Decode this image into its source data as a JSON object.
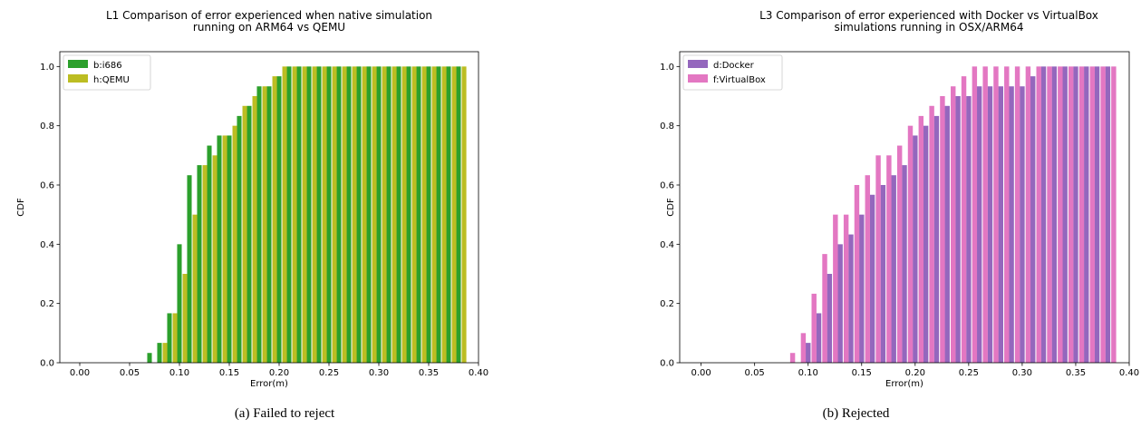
{
  "chart_data": [
    {
      "type": "bar",
      "title_lines": [
        "L1 Comparison of error experienced when native simulation",
        "running on ARM64 vs QEMU"
      ],
      "xlabel": "Error(m)",
      "ylabel": "CDF",
      "xlim": [
        -0.02,
        0.4
      ],
      "ylim": [
        0,
        1.05
      ],
      "xticks": [
        "0.00",
        "0.05",
        "0.10",
        "0.15",
        "0.20",
        "0.25",
        "0.30",
        "0.35",
        "0.40"
      ],
      "yticks": [
        "0.0",
        "0.2",
        "0.4",
        "0.6",
        "0.8",
        "1.0"
      ],
      "legend_position": "top-left",
      "series": [
        {
          "name": "b:i686",
          "color": "#2ca02c",
          "x": [
            0.07,
            0.08,
            0.09,
            0.1,
            0.11,
            0.12,
            0.13,
            0.14,
            0.15,
            0.16,
            0.17,
            0.18,
            0.19,
            0.2,
            0.21,
            0.22,
            0.23,
            0.24,
            0.25,
            0.26,
            0.27,
            0.28,
            0.29,
            0.3,
            0.31,
            0.32,
            0.33,
            0.34,
            0.35,
            0.36,
            0.37,
            0.38
          ],
          "values": [
            0.033,
            0.067,
            0.167,
            0.4,
            0.633,
            0.667,
            0.733,
            0.767,
            0.767,
            0.833,
            0.867,
            0.933,
            0.933,
            0.967,
            1.0,
            1.0,
            1.0,
            1.0,
            1.0,
            1.0,
            1.0,
            1.0,
            1.0,
            1.0,
            1.0,
            1.0,
            1.0,
            1.0,
            1.0,
            1.0,
            1.0,
            1.0
          ]
        },
        {
          "name": "h:QEMU",
          "color": "#bcbd22",
          "x": [
            0.0755,
            0.0855,
            0.0955,
            0.1055,
            0.1155,
            0.1255,
            0.1355,
            0.1455,
            0.1555,
            0.1655,
            0.1755,
            0.1855,
            0.1955,
            0.2055,
            0.2155,
            0.2255,
            0.2355,
            0.2455,
            0.2555,
            0.2655,
            0.2755,
            0.2855,
            0.2955,
            0.3055,
            0.3155,
            0.3255,
            0.3355,
            0.3455,
            0.3555,
            0.3655,
            0.3755,
            0.3855
          ],
          "values": [
            0.0,
            0.067,
            0.167,
            0.3,
            0.5,
            0.667,
            0.7,
            0.767,
            0.8,
            0.867,
            0.9,
            0.933,
            0.967,
            1.0,
            1.0,
            1.0,
            1.0,
            1.0,
            1.0,
            1.0,
            1.0,
            1.0,
            1.0,
            1.0,
            1.0,
            1.0,
            1.0,
            1.0,
            1.0,
            1.0,
            1.0,
            1.0
          ]
        }
      ]
    },
    {
      "type": "bar",
      "title_lines": [
        "L3 Comparison of error experienced with Docker vs VirtualBox",
        "simulations running in OSX/ARM64"
      ],
      "xlabel": "Error(m)",
      "ylabel": "CDF",
      "xlim": [
        -0.02,
        0.4
      ],
      "ylim": [
        0,
        1.05
      ],
      "xticks": [
        "0.00",
        "0.05",
        "0.10",
        "0.15",
        "0.20",
        "0.25",
        "0.30",
        "0.35",
        "0.40"
      ],
      "yticks": [
        "0.0",
        "0.2",
        "0.4",
        "0.6",
        "0.8",
        "1.0"
      ],
      "legend_position": "top-left",
      "series": [
        {
          "name": "d:Docker",
          "color": "#9467bd",
          "x": [
            0.09,
            0.1,
            0.11,
            0.12,
            0.13,
            0.14,
            0.15,
            0.16,
            0.17,
            0.18,
            0.19,
            0.2,
            0.21,
            0.22,
            0.23,
            0.24,
            0.25,
            0.26,
            0.27,
            0.28,
            0.29,
            0.3,
            0.31,
            0.32,
            0.33,
            0.34,
            0.35,
            0.36,
            0.37,
            0.38
          ],
          "values": [
            0.0,
            0.067,
            0.167,
            0.3,
            0.4,
            0.433,
            0.5,
            0.567,
            0.6,
            0.633,
            0.667,
            0.767,
            0.8,
            0.833,
            0.867,
            0.9,
            0.9,
            0.933,
            0.933,
            0.933,
            0.933,
            0.933,
            0.967,
            1.0,
            1.0,
            1.0,
            1.0,
            1.0,
            1.0,
            1.0
          ]
        },
        {
          "name": "f:VirtualBox",
          "color": "#e377c2",
          "x": [
            0.0855,
            0.0955,
            0.1055,
            0.1155,
            0.1255,
            0.1355,
            0.1455,
            0.1555,
            0.1655,
            0.1755,
            0.1855,
            0.1955,
            0.2055,
            0.2155,
            0.2255,
            0.2355,
            0.2455,
            0.2555,
            0.2655,
            0.2755,
            0.2855,
            0.2955,
            0.3055,
            0.3155,
            0.3255,
            0.3355,
            0.3455,
            0.3555,
            0.3655,
            0.3755,
            0.3855
          ],
          "values": [
            0.033,
            0.1,
            0.233,
            0.367,
            0.5,
            0.5,
            0.6,
            0.633,
            0.7,
            0.7,
            0.733,
            0.8,
            0.833,
            0.867,
            0.9,
            0.933,
            0.967,
            1.0,
            1.0,
            1.0,
            1.0,
            1.0,
            1.0,
            1.0,
            1.0,
            1.0,
            1.0,
            1.0,
            1.0,
            1.0,
            1.0
          ]
        }
      ]
    }
  ],
  "captions": {
    "a": "(a) Failed to reject",
    "b": "(b) Rejected"
  }
}
